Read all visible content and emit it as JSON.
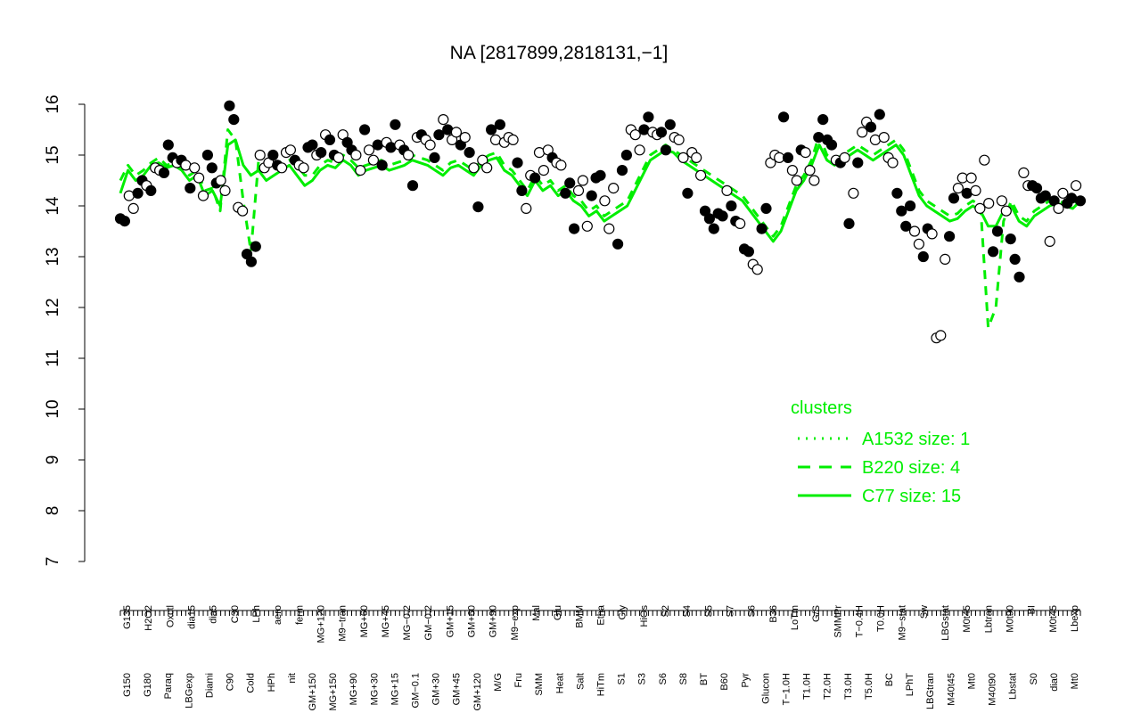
{
  "chart_data": {
    "type": "scatter",
    "title": "NA [2817899,2818131,−1]",
    "xlabel": "",
    "ylabel": "",
    "ylim": [
      7,
      16
    ],
    "y_ticks": [
      7,
      8,
      9,
      10,
      11,
      12,
      13,
      14,
      15,
      16
    ],
    "grid": false,
    "categories_top": [
      "G135",
      "H2O2",
      "Oxctl",
      "dia15",
      "dia5",
      "C30",
      "LPh",
      "aero",
      "ferm",
      "MG+120",
      "M9−tran",
      "MG+60",
      "MG+45",
      "MG−0.2",
      "GM−0.2",
      "GM+15",
      "GM+60",
      "GM+90",
      "M9−exp",
      "Mal",
      "Glu",
      "BMM",
      "Etha",
      "Gly",
      "HiOs",
      "S2",
      "S4",
      "S5",
      "S7",
      "S6",
      "B36",
      "LoTm",
      "G/S",
      "SMMPr",
      "T−0.4H",
      "T0.0H",
      "M9−stat",
      "Sw",
      "LBGstat",
      "M0t45",
      "Lbtran",
      "M0t90",
      "BI",
      "M0t45",
      "Lbexp"
    ],
    "categories_bottom": [
      "G150",
      "G180",
      "Paraq",
      "LBGexp",
      "Diami",
      "C90",
      "Cold",
      "HPh",
      "nit",
      "GM+150",
      "MG+150",
      "MG+90",
      "MG+30",
      "MG+15",
      "GM−0.1",
      "GM+30",
      "GM+45",
      "GM+120",
      "M/G",
      "Fru",
      "SMM",
      "Heat",
      "Salt",
      "HiTm",
      "S1",
      "S3",
      "S6",
      "S8",
      "BT",
      "B60",
      "Pyr",
      "Glucon",
      "T−1.0H",
      "T1.0H",
      "T2.0H",
      "T3.0H",
      "T5.0H",
      "BC",
      "LPhT",
      "LBGtran",
      "M40t45",
      "Mt0",
      "M40t90",
      "Lbstat",
      "S0",
      "dia0",
      "Mt0"
    ],
    "points": [
      {
        "v": 13.75,
        "f": true
      },
      {
        "v": 13.7,
        "f": true
      },
      {
        "v": 14.2,
        "f": false
      },
      {
        "v": 13.95,
        "f": false
      },
      {
        "v": 14.25,
        "f": true
      },
      {
        "v": 14.5,
        "f": true
      },
      {
        "v": 14.4,
        "f": false
      },
      {
        "v": 14.3,
        "f": true
      },
      {
        "v": 14.75,
        "f": false
      },
      {
        "v": 14.7,
        "f": false
      },
      {
        "v": 14.65,
        "f": true
      },
      {
        "v": 15.2,
        "f": true
      },
      {
        "v": 14.95,
        "f": true
      },
      {
        "v": 14.85,
        "f": false
      },
      {
        "v": 14.9,
        "f": true
      },
      {
        "v": 14.8,
        "f": false
      },
      {
        "v": 14.35,
        "f": true
      },
      {
        "v": 14.75,
        "f": false
      },
      {
        "v": 14.55,
        "f": false
      },
      {
        "v": 14.2,
        "f": false
      },
      {
        "v": 15.0,
        "f": true
      },
      {
        "v": 14.75,
        "f": true
      },
      {
        "v": 14.45,
        "f": true
      },
      {
        "v": 14.5,
        "f": false
      },
      {
        "v": 14.3,
        "f": false
      },
      {
        "v": 15.97,
        "f": true
      },
      {
        "v": 15.7,
        "f": true
      },
      {
        "v": 13.97,
        "f": false
      },
      {
        "v": 13.9,
        "f": false
      },
      {
        "v": 13.05,
        "f": true
      },
      {
        "v": 12.9,
        "f": true
      },
      {
        "v": 13.2,
        "f": true
      },
      {
        "v": 15.0,
        "f": false
      },
      {
        "v": 14.75,
        "f": false
      },
      {
        "v": 14.85,
        "f": false
      },
      {
        "v": 15.0,
        "f": true
      },
      {
        "v": 14.8,
        "f": true
      },
      {
        "v": 14.75,
        "f": false
      },
      {
        "v": 15.05,
        "f": false
      },
      {
        "v": 15.1,
        "f": false
      },
      {
        "v": 14.9,
        "f": true
      },
      {
        "v": 14.8,
        "f": false
      },
      {
        "v": 14.75,
        "f": false
      },
      {
        "v": 15.15,
        "f": true
      },
      {
        "v": 15.2,
        "f": true
      },
      {
        "v": 15.0,
        "f": false
      },
      {
        "v": 15.05,
        "f": true
      },
      {
        "v": 15.4,
        "f": false
      },
      {
        "v": 15.3,
        "f": true
      },
      {
        "v": 15.0,
        "f": true
      },
      {
        "v": 14.95,
        "f": false
      },
      {
        "v": 15.4,
        "f": false
      },
      {
        "v": 15.25,
        "f": true
      },
      {
        "v": 15.1,
        "f": true
      },
      {
        "v": 15.0,
        "f": false
      },
      {
        "v": 14.7,
        "f": false
      },
      {
        "v": 15.5,
        "f": true
      },
      {
        "v": 15.1,
        "f": false
      },
      {
        "v": 14.9,
        "f": false
      },
      {
        "v": 15.2,
        "f": true
      },
      {
        "v": 14.8,
        "f": true
      },
      {
        "v": 15.25,
        "f": false
      },
      {
        "v": 15.15,
        "f": true
      },
      {
        "v": 15.6,
        "f": true
      },
      {
        "v": 15.2,
        "f": false
      },
      {
        "v": 15.1,
        "f": true
      },
      {
        "v": 15.0,
        "f": false
      },
      {
        "v": 14.4,
        "f": true
      },
      {
        "v": 15.35,
        "f": false
      },
      {
        "v": 15.4,
        "f": true
      },
      {
        "v": 15.3,
        "f": false
      },
      {
        "v": 15.2,
        "f": false
      },
      {
        "v": 14.95,
        "f": true
      },
      {
        "v": 15.4,
        "f": true
      },
      {
        "v": 15.7,
        "f": false
      },
      {
        "v": 15.5,
        "f": true
      },
      {
        "v": 15.3,
        "f": false
      },
      {
        "v": 15.45,
        "f": false
      },
      {
        "v": 15.2,
        "f": true
      },
      {
        "v": 15.35,
        "f": false
      },
      {
        "v": 15.05,
        "f": true
      },
      {
        "v": 14.75,
        "f": false
      },
      {
        "v": 13.98,
        "f": true
      },
      {
        "v": 14.9,
        "f": false
      },
      {
        "v": 14.75,
        "f": false
      },
      {
        "v": 15.5,
        "f": true
      },
      {
        "v": 15.3,
        "f": false
      },
      {
        "v": 15.6,
        "f": true
      },
      {
        "v": 15.25,
        "f": false
      },
      {
        "v": 15.35,
        "f": false
      },
      {
        "v": 15.3,
        "f": false
      },
      {
        "v": 14.85,
        "f": true
      },
      {
        "v": 14.3,
        "f": true
      },
      {
        "v": 13.95,
        "f": false
      },
      {
        "v": 14.6,
        "f": false
      },
      {
        "v": 14.55,
        "f": true
      },
      {
        "v": 15.05,
        "f": false
      },
      {
        "v": 14.7,
        "f": false
      },
      {
        "v": 15.1,
        "f": false
      },
      {
        "v": 14.95,
        "f": true
      },
      {
        "v": 14.85,
        "f": false
      },
      {
        "v": 14.8,
        "f": false
      },
      {
        "v": 14.25,
        "f": true
      },
      {
        "v": 14.45,
        "f": true
      },
      {
        "v": 13.55,
        "f": true
      },
      {
        "v": 14.3,
        "f": false
      },
      {
        "v": 14.5,
        "f": false
      },
      {
        "v": 13.6,
        "f": false
      },
      {
        "v": 14.2,
        "f": true
      },
      {
        "v": 14.55,
        "f": true
      },
      {
        "v": 14.6,
        "f": true
      },
      {
        "v": 14.1,
        "f": false
      },
      {
        "v": 13.55,
        "f": false
      },
      {
        "v": 14.35,
        "f": false
      },
      {
        "v": 13.25,
        "f": true
      },
      {
        "v": 14.7,
        "f": true
      },
      {
        "v": 15.0,
        "f": true
      },
      {
        "v": 15.5,
        "f": false
      },
      {
        "v": 15.4,
        "f": false
      },
      {
        "v": 15.1,
        "f": false
      },
      {
        "v": 15.5,
        "f": true
      },
      {
        "v": 15.75,
        "f": true
      },
      {
        "v": 15.45,
        "f": false
      },
      {
        "v": 15.4,
        "f": false
      },
      {
        "v": 15.45,
        "f": true
      },
      {
        "v": 15.1,
        "f": true
      },
      {
        "v": 15.6,
        "f": true
      },
      {
        "v": 15.35,
        "f": false
      },
      {
        "v": 15.3,
        "f": false
      },
      {
        "v": 14.95,
        "f": false
      },
      {
        "v": 14.25,
        "f": true
      },
      {
        "v": 15.05,
        "f": false
      },
      {
        "v": 14.95,
        "f": false
      },
      {
        "v": 14.6,
        "f": false
      },
      {
        "v": 13.9,
        "f": true
      },
      {
        "v": 13.75,
        "f": true
      },
      {
        "v": 13.55,
        "f": true
      },
      {
        "v": 13.85,
        "f": true
      },
      {
        "v": 13.8,
        "f": true
      },
      {
        "v": 14.3,
        "f": false
      },
      {
        "v": 14.0,
        "f": true
      },
      {
        "v": 13.7,
        "f": true
      },
      {
        "v": 13.65,
        "f": false
      },
      {
        "v": 13.15,
        "f": true
      },
      {
        "v": 13.1,
        "f": true
      },
      {
        "v": 12.85,
        "f": false
      },
      {
        "v": 12.75,
        "f": false
      },
      {
        "v": 13.55,
        "f": true
      },
      {
        "v": 13.95,
        "f": true
      },
      {
        "v": 14.85,
        "f": false
      },
      {
        "v": 15.0,
        "f": false
      },
      {
        "v": 14.95,
        "f": false
      },
      {
        "v": 15.75,
        "f": true
      },
      {
        "v": 14.95,
        "f": true
      },
      {
        "v": 14.7,
        "f": false
      },
      {
        "v": 14.5,
        "f": false
      },
      {
        "v": 15.1,
        "f": true
      },
      {
        "v": 15.05,
        "f": false
      },
      {
        "v": 14.7,
        "f": false
      },
      {
        "v": 14.5,
        "f": false
      },
      {
        "v": 15.35,
        "f": true
      },
      {
        "v": 15.7,
        "f": true
      },
      {
        "v": 15.3,
        "f": true
      },
      {
        "v": 15.2,
        "f": true
      },
      {
        "v": 14.9,
        "f": false
      },
      {
        "v": 14.85,
        "f": true
      },
      {
        "v": 14.95,
        "f": false
      },
      {
        "v": 13.65,
        "f": true
      },
      {
        "v": 14.25,
        "f": false
      },
      {
        "v": 14.85,
        "f": true
      },
      {
        "v": 15.45,
        "f": false
      },
      {
        "v": 15.65,
        "f": false
      },
      {
        "v": 15.55,
        "f": true
      },
      {
        "v": 15.3,
        "f": false
      },
      {
        "v": 15.8,
        "f": true
      },
      {
        "v": 15.35,
        "f": false
      },
      {
        "v": 14.95,
        "f": false
      },
      {
        "v": 14.85,
        "f": false
      },
      {
        "v": 14.25,
        "f": true
      },
      {
        "v": 13.9,
        "f": true
      },
      {
        "v": 13.6,
        "f": true
      },
      {
        "v": 14.0,
        "f": true
      },
      {
        "v": 13.5,
        "f": false
      },
      {
        "v": 13.25,
        "f": false
      },
      {
        "v": 13.0,
        "f": true
      },
      {
        "v": 13.55,
        "f": true
      },
      {
        "v": 13.45,
        "f": false
      },
      {
        "v": 11.4,
        "f": false
      },
      {
        "v": 11.45,
        "f": false
      },
      {
        "v": 12.95,
        "f": false
      },
      {
        "v": 13.4,
        "f": true
      },
      {
        "v": 14.15,
        "f": true
      },
      {
        "v": 14.35,
        "f": false
      },
      {
        "v": 14.55,
        "f": false
      },
      {
        "v": 14.25,
        "f": true
      },
      {
        "v": 14.55,
        "f": false
      },
      {
        "v": 14.3,
        "f": false
      },
      {
        "v": 13.95,
        "f": false
      },
      {
        "v": 14.9,
        "f": false
      },
      {
        "v": 14.05,
        "f": false
      },
      {
        "v": 13.1,
        "f": true
      },
      {
        "v": 13.5,
        "f": true
      },
      {
        "v": 14.1,
        "f": false
      },
      {
        "v": 13.9,
        "f": false
      },
      {
        "v": 13.35,
        "f": true
      },
      {
        "v": 12.95,
        "f": true
      },
      {
        "v": 12.6,
        "f": true
      },
      {
        "v": 14.65,
        "f": false
      },
      {
        "v": 14.4,
        "f": false
      },
      {
        "v": 14.4,
        "f": true
      },
      {
        "v": 14.35,
        "f": true
      },
      {
        "v": 14.15,
        "f": true
      },
      {
        "v": 14.2,
        "f": true
      },
      {
        "v": 13.3,
        "f": false
      },
      {
        "v": 14.1,
        "f": true
      },
      {
        "v": 13.95,
        "f": false
      },
      {
        "v": 14.25,
        "f": false
      },
      {
        "v": 14.05,
        "f": true
      },
      {
        "v": 14.15,
        "f": true
      },
      {
        "v": 14.4,
        "f": false
      },
      {
        "v": 14.1,
        "f": true
      }
    ],
    "line_c77": [
      14.25,
      14.7,
      14.5,
      14.6,
      14.8,
      14.85,
      14.75,
      14.8,
      14.7,
      14.5,
      14.6,
      14.2,
      14.3,
      14.0,
      15.2,
      15.3,
      14.8,
      14.6,
      14.7,
      14.5,
      14.6,
      14.7,
      14.8,
      14.6,
      14.4,
      14.5,
      14.7,
      14.8,
      14.75,
      14.9,
      14.8,
      14.6,
      14.7,
      14.75,
      14.8,
      14.7,
      14.75,
      14.8,
      14.9,
      14.85,
      14.8,
      14.7,
      14.6,
      14.75,
      14.8,
      14.7,
      14.6,
      14.8,
      14.9,
      14.95,
      14.7,
      14.6,
      14.4,
      14.2,
      14.5,
      14.3,
      14.4,
      14.2,
      14.3,
      14.1,
      14.0,
      13.8,
      13.9,
      13.7,
      13.8,
      13.9,
      14.0,
      14.3,
      14.6,
      14.9,
      15.0,
      15.1,
      15.05,
      14.9,
      14.8,
      14.7,
      14.6,
      14.5,
      14.4,
      14.3,
      14.2,
      14.1,
      13.9,
      13.7,
      13.5,
      13.3,
      13.5,
      13.9,
      14.3,
      14.5,
      14.8,
      15.2,
      14.9,
      14.8,
      14.9,
      15.0,
      15.1,
      15.0,
      14.9,
      15.0,
      15.1,
      15.2,
      15.0,
      14.6,
      14.2,
      14.0,
      13.9,
      13.8,
      13.7,
      13.75,
      13.9,
      14.0,
      13.9,
      13.6,
      13.6,
      13.9,
      14.0,
      13.7,
      13.6,
      13.8,
      13.9,
      14.0,
      14.05,
      14.0,
      13.95,
      14.1
    ],
    "line_b220": [
      14.5,
      14.8,
      14.6,
      14.7,
      14.85,
      14.95,
      14.8,
      14.85,
      14.75,
      14.6,
      14.7,
      14.3,
      14.35,
      13.9,
      15.5,
      15.3,
      14.1,
      13.1,
      14.9,
      14.7,
      14.8,
      14.85,
      14.9,
      14.8,
      14.6,
      14.6,
      14.8,
      14.9,
      14.85,
      15.0,
      14.9,
      14.75,
      14.8,
      14.85,
      14.9,
      14.8,
      14.85,
      14.9,
      15.0,
      14.95,
      14.9,
      14.8,
      14.7,
      14.85,
      14.9,
      14.8,
      14.7,
      14.9,
      15.0,
      15.05,
      14.8,
      14.7,
      14.5,
      14.3,
      14.6,
      14.4,
      14.5,
      14.3,
      14.4,
      14.2,
      14.1,
      13.9,
      14.0,
      13.8,
      13.9,
      14.0,
      14.1,
      14.4,
      14.7,
      15.0,
      15.1,
      15.2,
      15.1,
      15.0,
      14.9,
      14.8,
      14.7,
      14.6,
      14.5,
      14.4,
      14.3,
      14.2,
      14.0,
      13.8,
      13.6,
      13.4,
      13.6,
      14.0,
      14.4,
      14.6,
      14.9,
      15.4,
      15.0,
      14.9,
      15.0,
      15.1,
      15.2,
      15.1,
      15.0,
      15.1,
      15.2,
      15.3,
      15.1,
      14.7,
      14.3,
      14.1,
      14.0,
      13.9,
      13.8,
      13.85,
      14.0,
      14.1,
      14.0,
      11.6,
      12.0,
      13.7,
      14.1,
      13.8,
      13.7,
      13.9,
      14.0,
      14.1,
      14.1,
      14.05,
      14.0,
      14.15
    ],
    "legend": {
      "title": "clusters",
      "entries": [
        {
          "label": "A1532 size: 1",
          "style": "dotted"
        },
        {
          "label": "B220 size: 4",
          "style": "dashed"
        },
        {
          "label": "C77 size: 15",
          "style": "solid"
        }
      ],
      "placement": "bottom-right"
    },
    "colors": {
      "cluster_line": "#00ee00",
      "point_filled": "#000000",
      "point_open": "#ffffff",
      "axis": "#000000"
    }
  }
}
